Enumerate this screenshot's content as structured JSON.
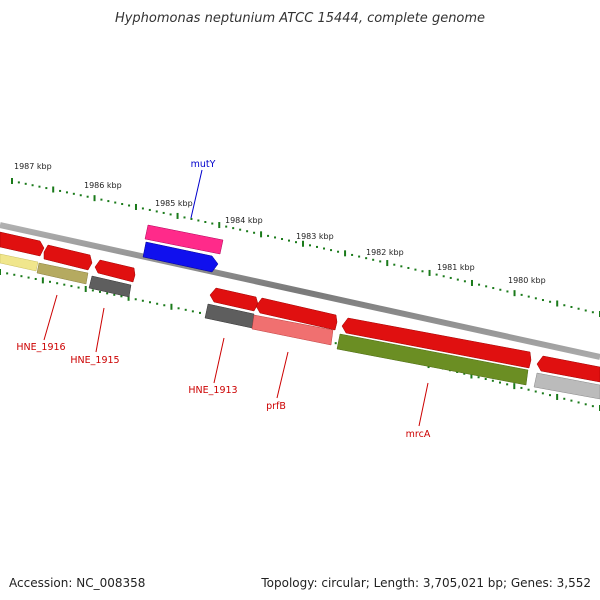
{
  "title": "Hyphomonas neptunium ATCC 15444, complete genome",
  "footer": {
    "accession": "Accession: NC_008358",
    "summary": "Topology: circular; Length: 3,705,021 bp; Genes: 3,552"
  },
  "scale_ticks": [
    "1987 kbp",
    "1986 kbp",
    "1985 kbp",
    "1984 kbp",
    "1983 kbp",
    "1982 kbp",
    "1981 kbp",
    "1980 kbp"
  ],
  "colors": {
    "backbone": "#888888",
    "tick_dots": "#1a7a1a",
    "gene_red": "#ee1111",
    "gene_pink": "#ff3399",
    "gene_blue": "#1111ee",
    "gene_gray": "#666666",
    "gene_lightred": "#f07070",
    "gene_olive": "#6b8e23",
    "gene_khaki": "#bbb070",
    "gene_yellow": "#f0e68c",
    "gene_lightgray": "#bbbbbb",
    "label_red": "#cc0000",
    "label_blue": "#0000cc"
  },
  "gene_labels": [
    {
      "name": "mutY",
      "color_key": "label_blue"
    },
    {
      "name": "HNE_1916",
      "color_key": "label_red"
    },
    {
      "name": "HNE_1915",
      "color_key": "label_red"
    },
    {
      "name": "HNE_1913",
      "color_key": "label_red"
    },
    {
      "name": "prfB",
      "color_key": "label_red"
    },
    {
      "name": "mrcA",
      "color_key": "label_red"
    }
  ]
}
